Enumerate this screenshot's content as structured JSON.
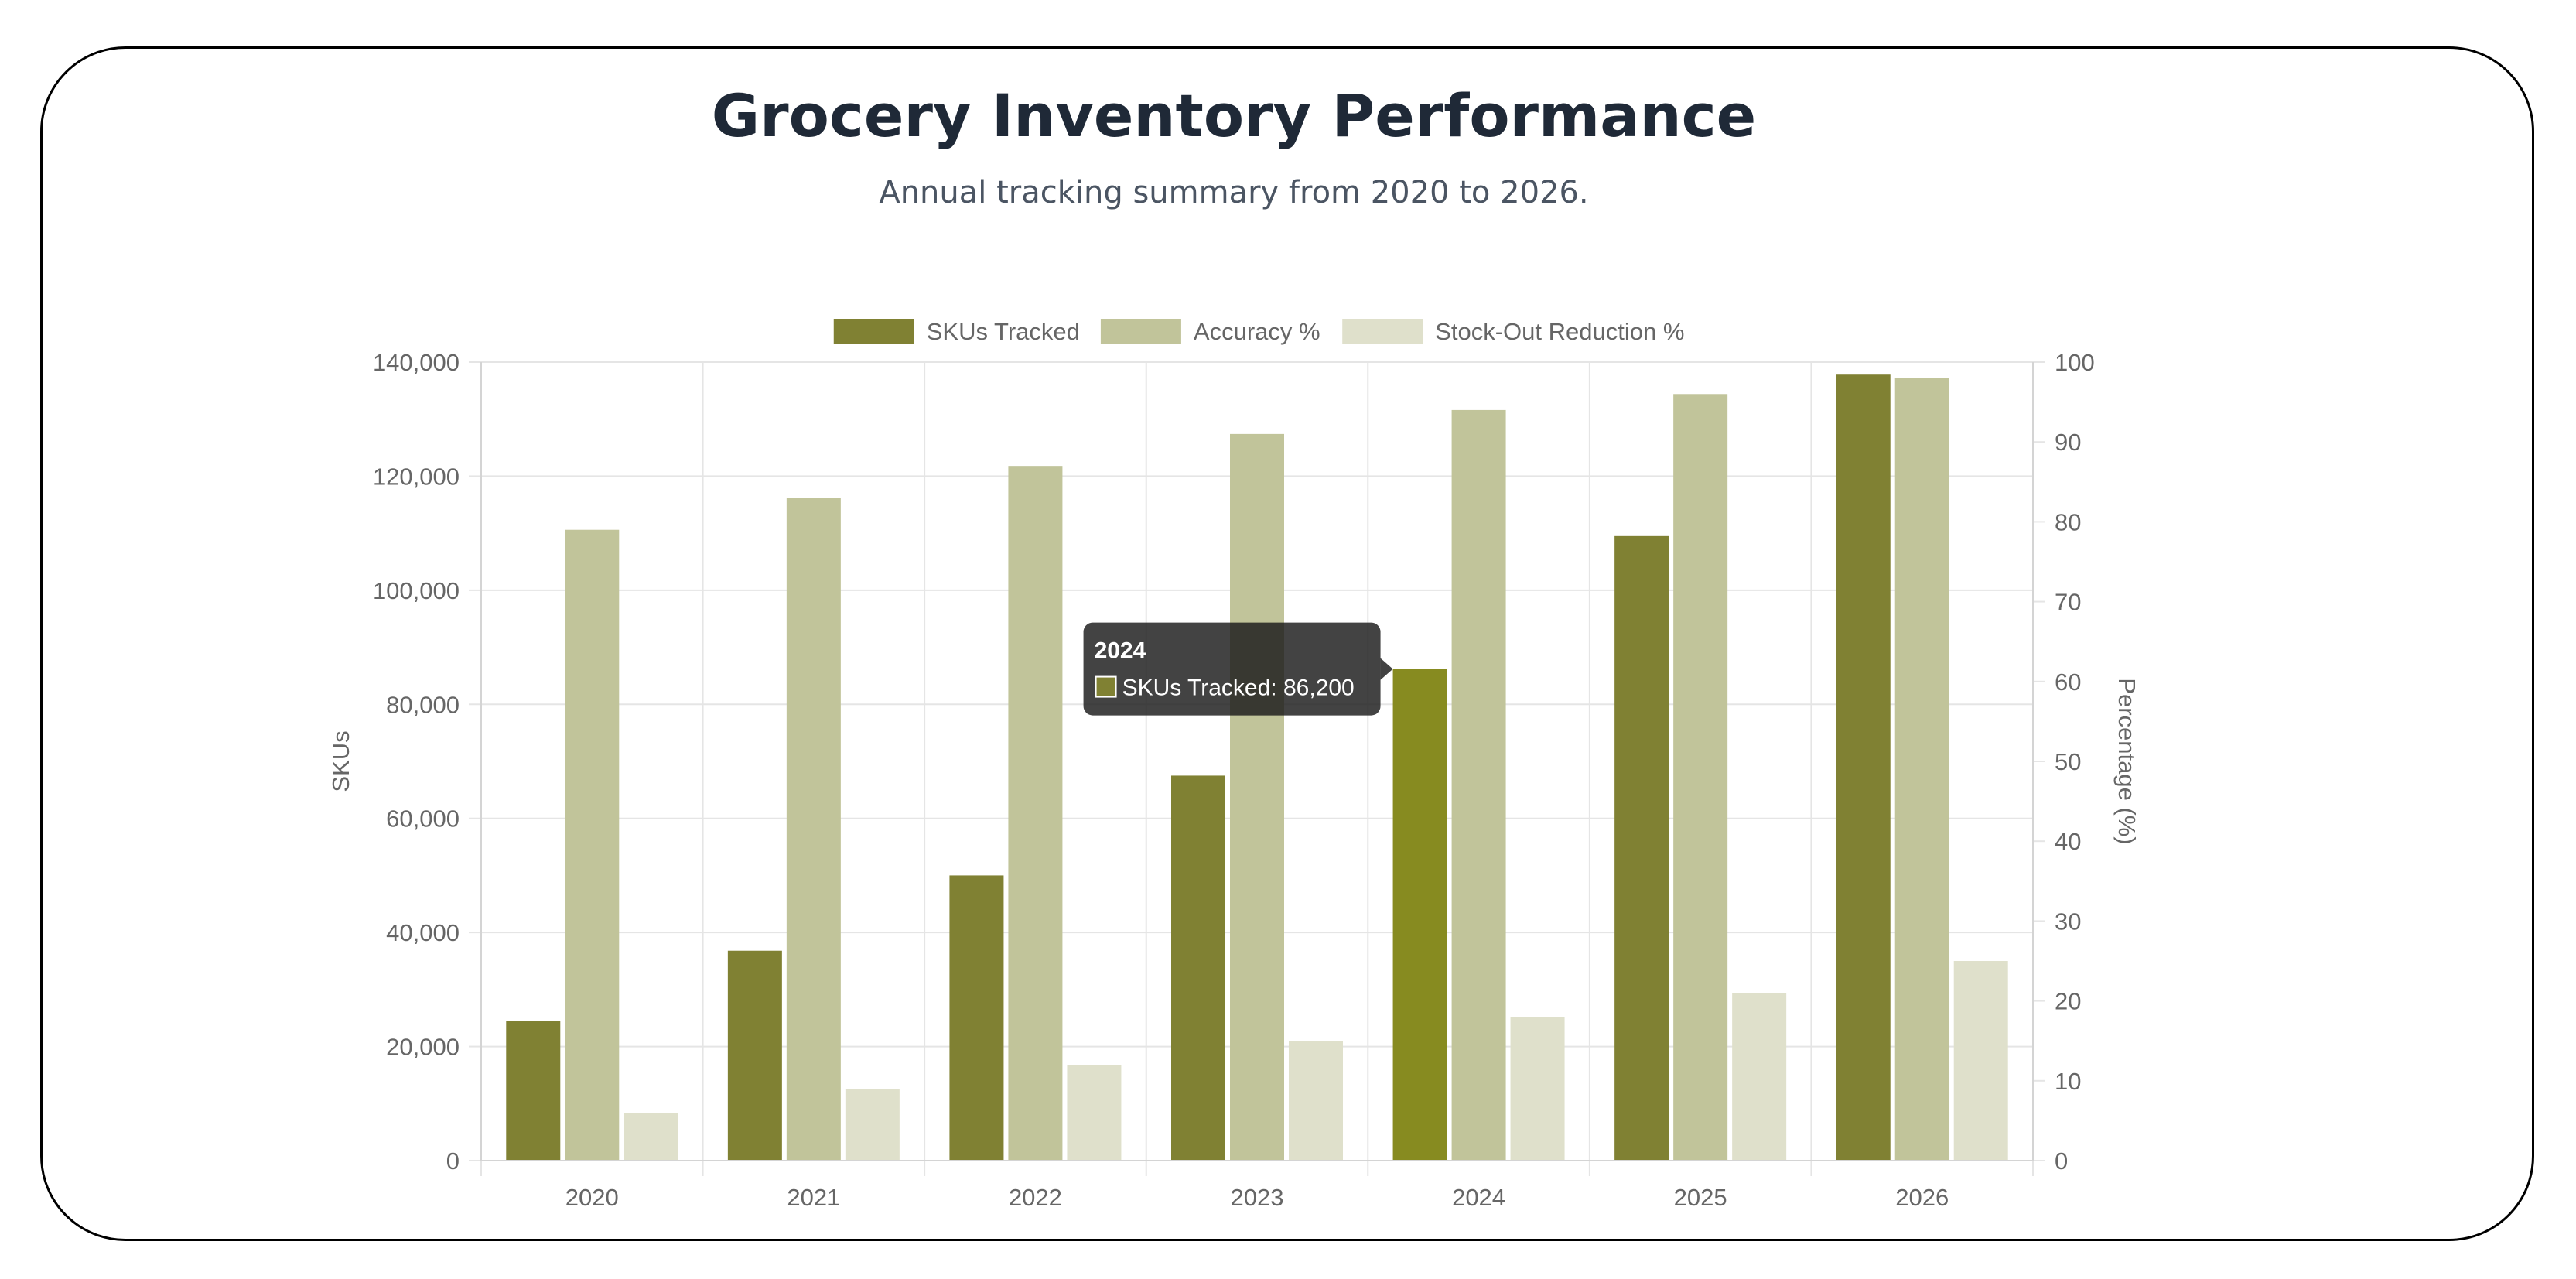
{
  "header": {
    "title": "Grocery Inventory Performance",
    "subtitle": "Annual tracking summary from 2020 to 2026."
  },
  "colors": {
    "skus": "#808133",
    "skus_highlight": "#878B20",
    "accuracy": "#C1C49A",
    "stockout": "#DFE0CB",
    "grid": "#e5e5e5",
    "tick_text": "#666666",
    "tooltip_bg": "#1a1a1a"
  },
  "chart_data": {
    "type": "bar",
    "categories": [
      "2020",
      "2021",
      "2022",
      "2023",
      "2024",
      "2025",
      "2026"
    ],
    "series": [
      {
        "name": "SKUs Tracked",
        "axis": "left",
        "values": [
          24500,
          36800,
          50000,
          67500,
          86200,
          109500,
          137800
        ]
      },
      {
        "name": "Accuracy %",
        "axis": "right",
        "values": [
          79,
          83,
          87,
          91,
          94,
          96,
          98
        ]
      },
      {
        "name": "Stock-Out Reduction %",
        "axis": "right",
        "values": [
          6,
          9,
          12,
          15,
          18,
          21,
          25
        ]
      }
    ],
    "y_left": {
      "label": "SKUs",
      "min": 0,
      "max": 140000,
      "ticks": [
        "0",
        "20,000",
        "40,000",
        "60,000",
        "80,000",
        "100,000",
        "120,000",
        "140,000"
      ]
    },
    "y_right": {
      "label": "Percentage (%)",
      "min": 0,
      "max": 100,
      "ticks": [
        "0",
        "10",
        "20",
        "30",
        "40",
        "50",
        "60",
        "70",
        "80",
        "90",
        "100"
      ]
    },
    "grid": true,
    "legend_position": "top",
    "tooltip": {
      "category": "2024",
      "series": "SKUs Tracked",
      "title": "2024",
      "text": "SKUs Tracked: 86,200"
    }
  }
}
